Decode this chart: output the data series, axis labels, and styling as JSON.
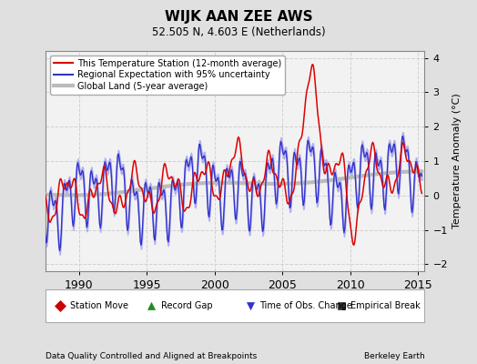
{
  "title": "WIJK AAN ZEE AWS",
  "subtitle": "52.505 N, 4.603 E (Netherlands)",
  "ylabel": "Temperature Anomaly (°C)",
  "xlabel_left": "Data Quality Controlled and Aligned at Breakpoints",
  "xlabel_right": "Berkeley Earth",
  "ylim": [
    -2.2,
    4.2
  ],
  "xlim": [
    1987.5,
    2015.5
  ],
  "yticks": [
    -2,
    -1,
    0,
    1,
    2,
    3,
    4
  ],
  "xticks": [
    1990,
    1995,
    2000,
    2005,
    2010,
    2015
  ],
  "bg_color": "#e0e0e0",
  "plot_bg_color": "#f2f2f2",
  "grid_color": "#d0d0d0",
  "station_color": "#dd0000",
  "regional_color": "#3333cc",
  "regional_fill_color": "#aaaaee",
  "global_color": "#bbbbbb",
  "legend_items": [
    {
      "label": "This Temperature Station (12-month average)",
      "color": "#dd0000",
      "lw": 1.5
    },
    {
      "label": "Regional Expectation with 95% uncertainty",
      "color": "#3333cc",
      "lw": 1.5
    },
    {
      "label": "Global Land (5-year average)",
      "color": "#bbbbbb",
      "lw": 3.0
    }
  ],
  "marker_legend": [
    {
      "label": "Station Move",
      "color": "#cc0000",
      "marker": "D"
    },
    {
      "label": "Record Gap",
      "color": "#228B22",
      "marker": "^"
    },
    {
      "label": "Time of Obs. Change",
      "color": "#3333cc",
      "marker": "v"
    },
    {
      "label": "Empirical Break",
      "color": "#333333",
      "marker": "s"
    }
  ]
}
